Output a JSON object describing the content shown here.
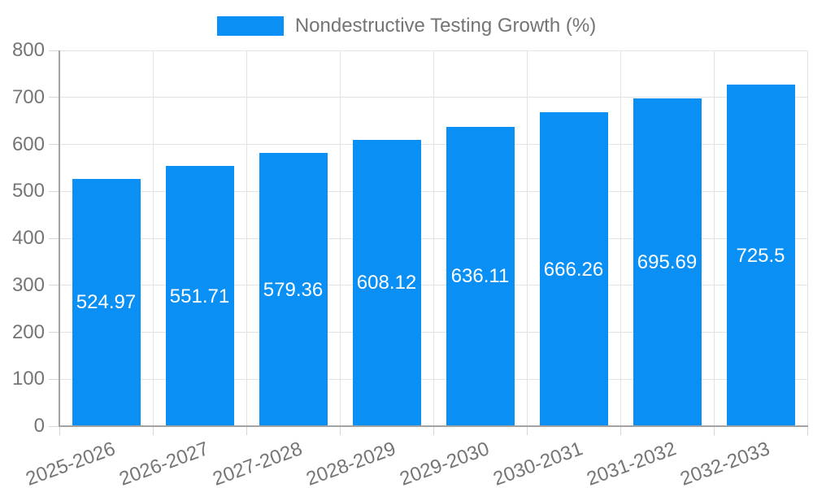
{
  "chart_data": {
    "type": "bar",
    "title": "Nondestructive Testing Growth (%)",
    "series_name": "Nondestructive Testing Growth (%)",
    "categories": [
      "2025-2026",
      "2026-2027",
      "2027-2028",
      "2028-2029",
      "2029-2030",
      "2030-2031",
      "2031-2032",
      "2032-2033"
    ],
    "values": [
      524.97,
      551.71,
      579.36,
      608.12,
      636.11,
      666.26,
      695.69,
      725.5
    ],
    "value_labels": [
      "524.97",
      "551.71",
      "579.36",
      "608.12",
      "636.11",
      "666.26",
      "695.69",
      "725.5"
    ],
    "xlabel": "",
    "ylabel": "",
    "ylim": [
      0,
      800
    ],
    "ytick_step": 100,
    "ytick_labels": [
      "0",
      "100",
      "200",
      "300",
      "400",
      "500",
      "600",
      "700",
      "800"
    ],
    "grid": true,
    "legend_position": "top",
    "x_label_rotation_deg": -20,
    "value_label_position": "inside-middle",
    "colors": {
      "bar": "#0a90f5",
      "value_label": "#ffffff",
      "grid": "#e3e3e3",
      "axis": "#a3a3a3",
      "tick": "#d6d6d6",
      "tick_text": "#757575",
      "background": "#ffffff"
    }
  }
}
